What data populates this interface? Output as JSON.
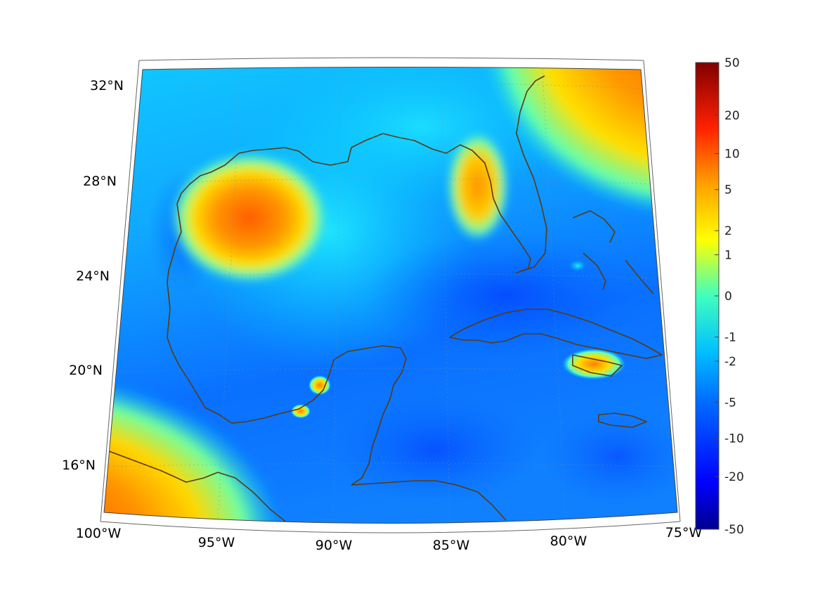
{
  "map": {
    "title": "",
    "projection": "conic (lat/lon grid, graticule dotted)",
    "lon_range": [
      -100,
      -75
    ],
    "lat_range": [
      14,
      33
    ],
    "grid": true,
    "lat_ticks": [
      "32°N",
      "28°N",
      "24°N",
      "20°N",
      "16°N"
    ],
    "lon_ticks": [
      "100°W",
      "95°W",
      "90°W",
      "85°W",
      "80°W",
      "75°W"
    ],
    "coastline_color": "#5a3a10",
    "regions": [
      "Gulf of Mexico",
      "Florida",
      "Cuba",
      "Yucatán",
      "Caribbean",
      "Central America"
    ]
  },
  "colorbar": {
    "colormap": "jet",
    "placement": "right",
    "tick_labels": [
      "50",
      "20",
      "10",
      "5",
      "2",
      "1",
      "0",
      "-1",
      "-2",
      "-5",
      "-10",
      "-20",
      "-50"
    ],
    "tick_values": [
      50,
      20,
      10,
      5,
      2,
      1,
      0,
      -1,
      -2,
      -5,
      -10,
      -20,
      -50
    ],
    "range": [
      -50,
      50
    ]
  }
}
